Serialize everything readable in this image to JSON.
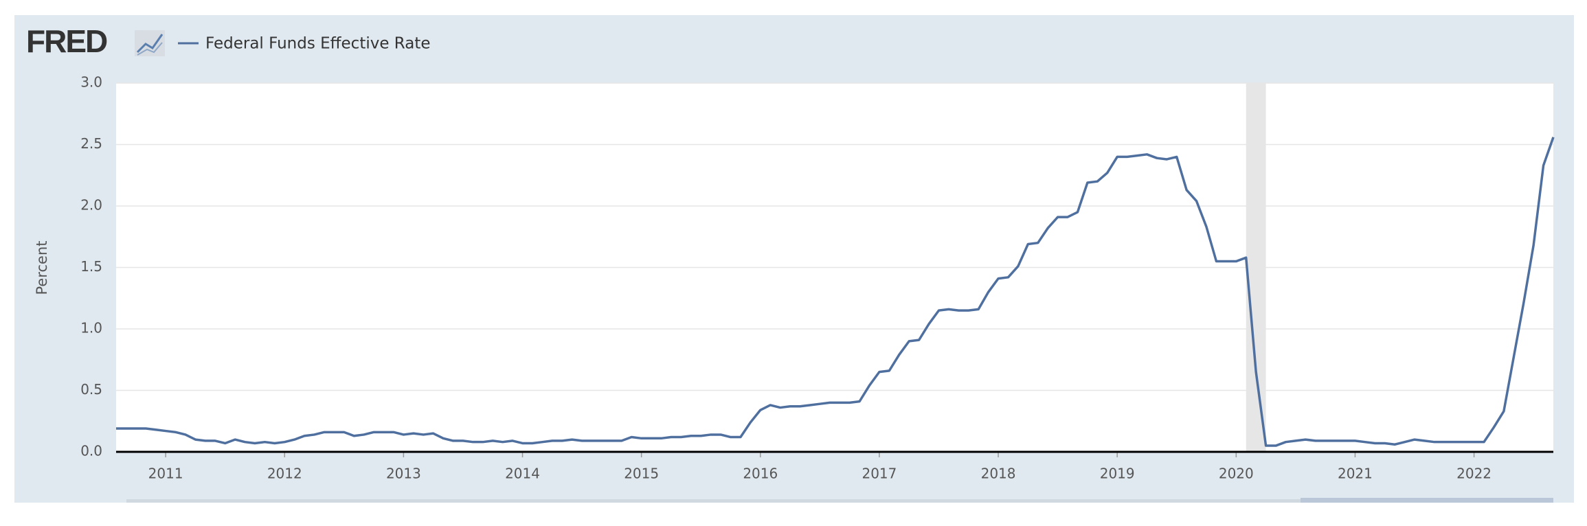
{
  "logo": "FRED",
  "chart_data": {
    "type": "line",
    "legend": "Federal Funds Effective Rate",
    "ylabel": "Percent",
    "color": "#4f6f9f",
    "grid": true,
    "recessions": [
      [
        "2020-02",
        "2020-04"
      ]
    ],
    "xlim": [
      "2010-08",
      "2022-09"
    ],
    "xticks": [
      {
        "value": "2011-01",
        "label": "2011"
      },
      {
        "value": "2012-01",
        "label": "2012"
      },
      {
        "value": "2013-01",
        "label": "2013"
      },
      {
        "value": "2014-01",
        "label": "2014"
      },
      {
        "value": "2015-01",
        "label": "2015"
      },
      {
        "value": "2016-01",
        "label": "2016"
      },
      {
        "value": "2017-01",
        "label": "2017"
      },
      {
        "value": "2018-01",
        "label": "2018"
      },
      {
        "value": "2019-01",
        "label": "2019"
      },
      {
        "value": "2020-01",
        "label": "2020"
      },
      {
        "value": "2021-01",
        "label": "2021"
      },
      {
        "value": "2022-01",
        "label": "2022"
      }
    ],
    "ylim": [
      0,
      3
    ],
    "yticks": [
      {
        "value": 0,
        "label": "0.0"
      },
      {
        "value": 0.5,
        "label": "0.5"
      },
      {
        "value": 1,
        "label": "1.0"
      },
      {
        "value": 1.5,
        "label": "1.5"
      },
      {
        "value": 2,
        "label": "2.0"
      },
      {
        "value": 2.5,
        "label": "2.5"
      },
      {
        "value": 3,
        "label": "3.0"
      }
    ],
    "x": [
      "2010-08",
      "2010-09",
      "2010-10",
      "2010-11",
      "2010-12",
      "2011-01",
      "2011-02",
      "2011-03",
      "2011-04",
      "2011-05",
      "2011-06",
      "2011-07",
      "2011-08",
      "2011-09",
      "2011-10",
      "2011-11",
      "2011-12",
      "2012-01",
      "2012-02",
      "2012-03",
      "2012-04",
      "2012-05",
      "2012-06",
      "2012-07",
      "2012-08",
      "2012-09",
      "2012-10",
      "2012-11",
      "2012-12",
      "2013-01",
      "2013-02",
      "2013-03",
      "2013-04",
      "2013-05",
      "2013-06",
      "2013-07",
      "2013-08",
      "2013-09",
      "2013-10",
      "2013-11",
      "2013-12",
      "2014-01",
      "2014-02",
      "2014-03",
      "2014-04",
      "2014-05",
      "2014-06",
      "2014-07",
      "2014-08",
      "2014-09",
      "2014-10",
      "2014-11",
      "2014-12",
      "2015-01",
      "2015-02",
      "2015-03",
      "2015-04",
      "2015-05",
      "2015-06",
      "2015-07",
      "2015-08",
      "2015-09",
      "2015-10",
      "2015-11",
      "2015-12",
      "2016-01",
      "2016-02",
      "2016-03",
      "2016-04",
      "2016-05",
      "2016-06",
      "2016-07",
      "2016-08",
      "2016-09",
      "2016-10",
      "2016-11",
      "2016-12",
      "2017-01",
      "2017-02",
      "2017-03",
      "2017-04",
      "2017-05",
      "2017-06",
      "2017-07",
      "2017-08",
      "2017-09",
      "2017-10",
      "2017-11",
      "2017-12",
      "2018-01",
      "2018-02",
      "2018-03",
      "2018-04",
      "2018-05",
      "2018-06",
      "2018-07",
      "2018-08",
      "2018-09",
      "2018-10",
      "2018-11",
      "2018-12",
      "2019-01",
      "2019-02",
      "2019-03",
      "2019-04",
      "2019-05",
      "2019-06",
      "2019-07",
      "2019-08",
      "2019-09",
      "2019-10",
      "2019-11",
      "2019-12",
      "2020-01",
      "2020-02",
      "2020-03",
      "2020-04",
      "2020-05",
      "2020-06",
      "2020-07",
      "2020-08",
      "2020-09",
      "2020-10",
      "2020-11",
      "2020-12",
      "2021-01",
      "2021-02",
      "2021-03",
      "2021-04",
      "2021-05",
      "2021-06",
      "2021-07",
      "2021-08",
      "2021-09",
      "2021-10",
      "2021-11",
      "2021-12",
      "2022-01",
      "2022-02",
      "2022-03",
      "2022-04",
      "2022-05",
      "2022-06",
      "2022-07",
      "2022-08",
      "2022-09"
    ],
    "values": [
      0.19,
      0.19,
      0.19,
      0.19,
      0.18,
      0.17,
      0.16,
      0.14,
      0.1,
      0.09,
      0.09,
      0.07,
      0.1,
      0.08,
      0.07,
      0.08,
      0.07,
      0.08,
      0.1,
      0.13,
      0.14,
      0.16,
      0.16,
      0.16,
      0.13,
      0.14,
      0.16,
      0.16,
      0.16,
      0.14,
      0.15,
      0.14,
      0.15,
      0.11,
      0.09,
      0.09,
      0.08,
      0.08,
      0.09,
      0.08,
      0.09,
      0.07,
      0.07,
      0.08,
      0.09,
      0.09,
      0.1,
      0.09,
      0.09,
      0.09,
      0.09,
      0.09,
      0.12,
      0.11,
      0.11,
      0.11,
      0.12,
      0.12,
      0.13,
      0.13,
      0.14,
      0.14,
      0.12,
      0.12,
      0.24,
      0.34,
      0.38,
      0.36,
      0.37,
      0.37,
      0.38,
      0.39,
      0.4,
      0.4,
      0.4,
      0.41,
      0.54,
      0.65,
      0.66,
      0.79,
      0.9,
      0.91,
      1.04,
      1.15,
      1.16,
      1.15,
      1.15,
      1.16,
      1.3,
      1.41,
      1.42,
      1.51,
      1.69,
      1.7,
      1.82,
      1.91,
      1.91,
      1.95,
      2.19,
      2.2,
      2.27,
      2.4,
      2.4,
      2.41,
      2.42,
      2.39,
      2.38,
      2.4,
      2.13,
      2.04,
      1.83,
      1.55,
      1.55,
      1.55,
      1.58,
      0.65,
      0.05,
      0.05,
      0.08,
      0.09,
      0.1,
      0.09,
      0.09,
      0.09,
      0.09,
      0.09,
      0.08,
      0.07,
      0.07,
      0.06,
      0.08,
      0.1,
      0.09,
      0.08,
      0.08,
      0.08,
      0.08,
      0.08,
      0.08,
      0.2,
      0.33,
      0.77,
      1.21,
      1.68,
      2.33,
      2.56
    ]
  }
}
